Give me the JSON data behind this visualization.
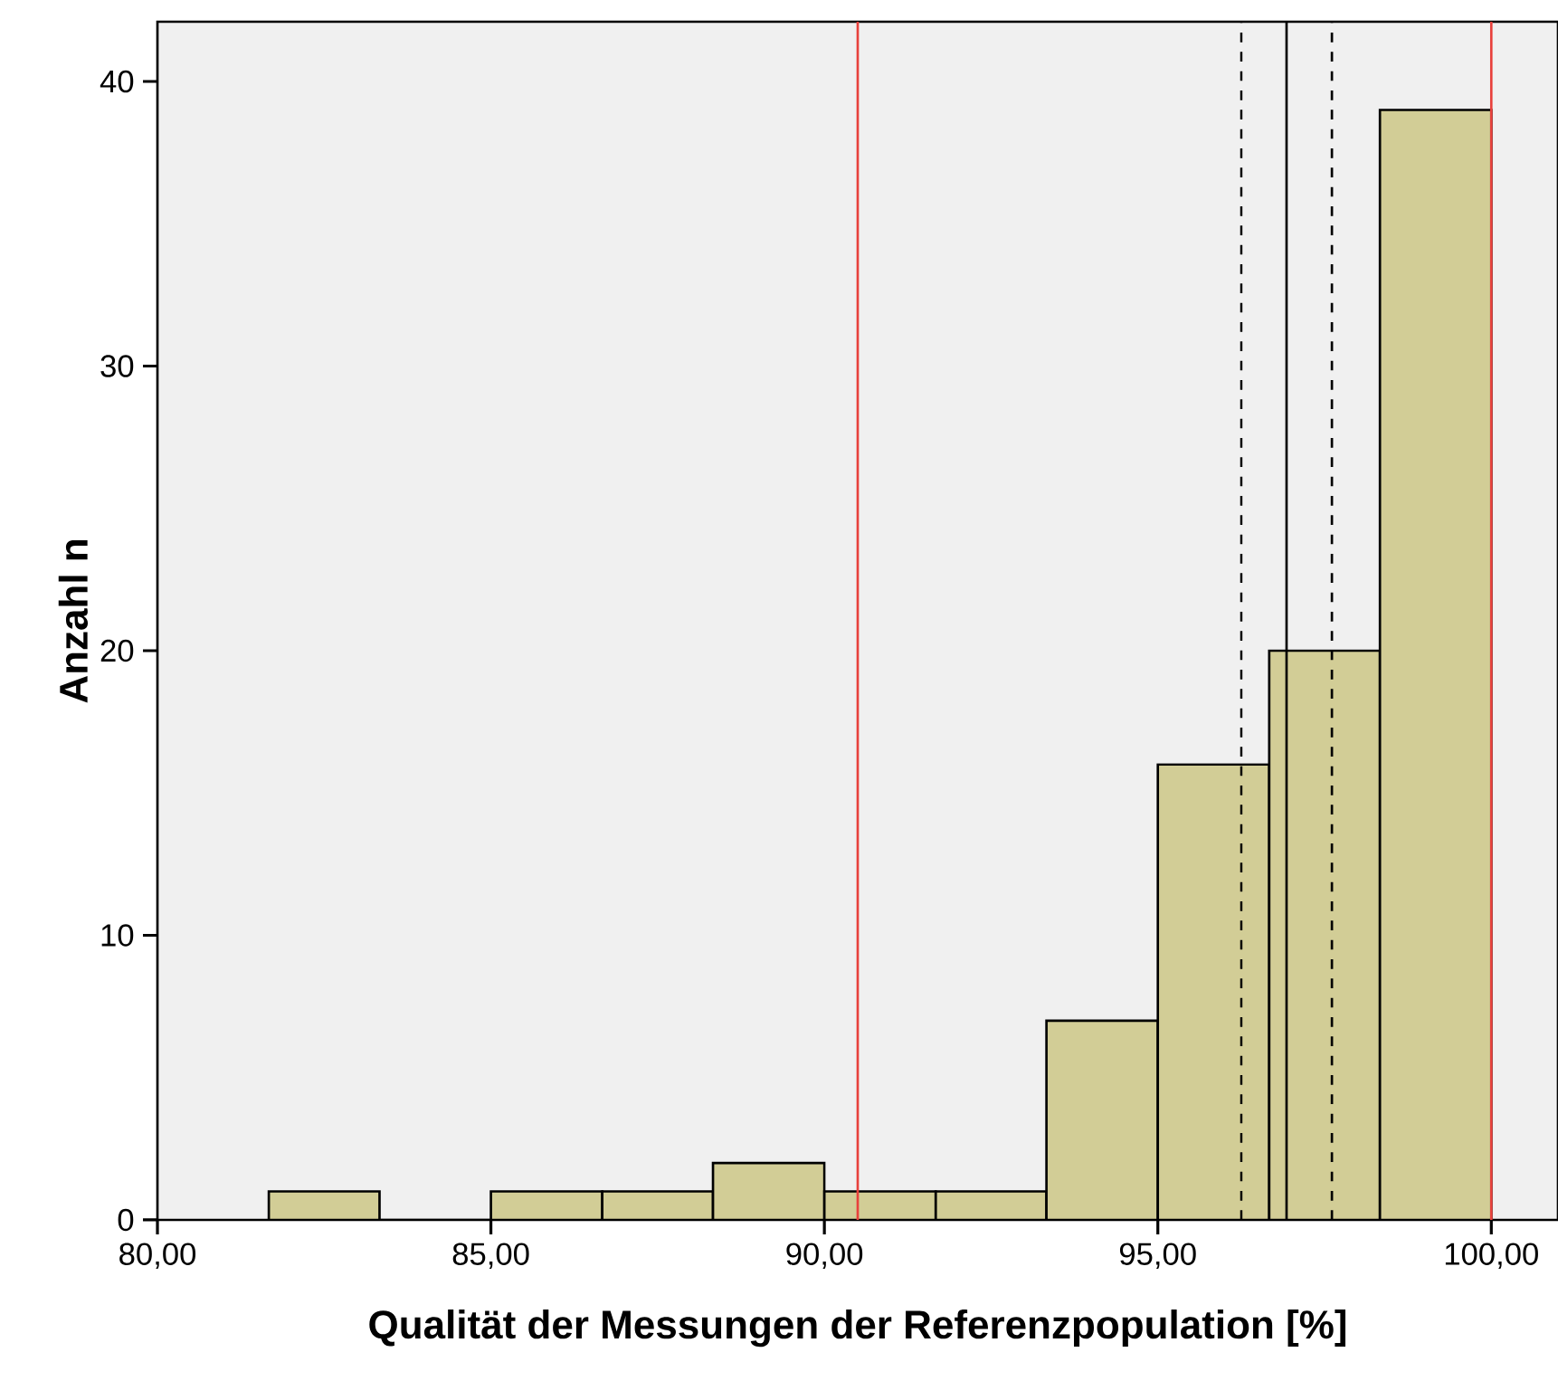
{
  "chart_data": {
    "type": "histogram",
    "xlabel": "Qualität der Messungen der Referenzpopulation [%]",
    "ylabel": "Anzahl n",
    "bins": [
      81.67,
      83.33,
      85.0,
      86.67,
      88.33,
      90.0,
      91.67,
      93.33,
      95.0,
      96.67,
      98.33,
      100.0
    ],
    "values": [
      1,
      0,
      1,
      1,
      2,
      1,
      1,
      7,
      16,
      20,
      39
    ],
    "color": "#d2cd96",
    "xlim": [
      80,
      101
    ],
    "ylim": [
      0,
      42.1
    ],
    "xticks": [
      {
        "value": 80,
        "label": "80,00"
      },
      {
        "value": 85,
        "label": "85,00"
      },
      {
        "value": 90,
        "label": "90,00"
      },
      {
        "value": 95,
        "label": "95,00"
      },
      {
        "value": 100,
        "label": "100,00"
      }
    ],
    "yticks": [
      0,
      10,
      20,
      30,
      40
    ],
    "ref_lines": [
      {
        "axis": "x",
        "value": 90.5,
        "color": "#e8413c",
        "line_style": "solid"
      },
      {
        "axis": "x",
        "value": 100,
        "color": "#e8413c",
        "line_style": "solid"
      },
      {
        "axis": "x",
        "value": 96.93,
        "color": "#000000",
        "line_style": "solid"
      },
      {
        "axis": "x",
        "value": 96.25,
        "color": "#000000",
        "line_style": "dashed"
      },
      {
        "axis": "x",
        "value": 97.61,
        "color": "#000000",
        "line_style": "dashed"
      }
    ]
  }
}
